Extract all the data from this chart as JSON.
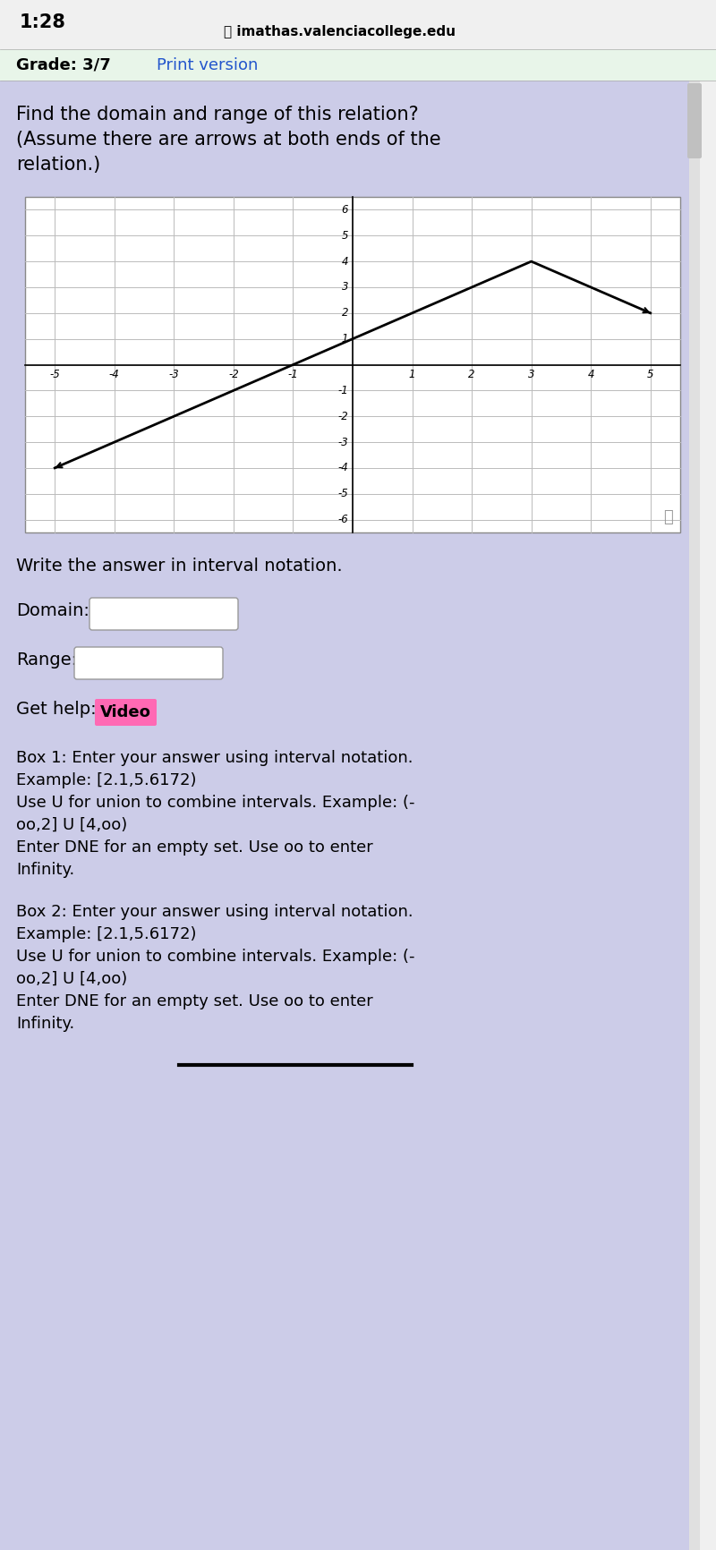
{
  "bg_color_phone": "#f0f0f0",
  "bg_color_green": "#e8f5e9",
  "bg_color_main": "#cccce8",
  "graph_bg": "#ffffff",
  "graph_line_color": "#000000",
  "graph_grid_color": "#bbbbbb",
  "graph_axis_color": "#000000",
  "graph_xlim": [
    -5.5,
    5.5
  ],
  "graph_ylim": [
    -6.5,
    6.5
  ],
  "graph_xticks": [
    -5,
    -4,
    -3,
    -2,
    -1,
    1,
    2,
    3,
    4,
    5
  ],
  "graph_yticks": [
    -6,
    -5,
    -4,
    -3,
    -2,
    -1,
    1,
    2,
    3,
    4,
    5,
    6
  ],
  "graph_tick_labels_x": [
    "-5",
    "-4",
    "-3",
    "-2",
    "-1",
    "1",
    "2",
    "3",
    "4",
    "5"
  ],
  "graph_tick_labels_y": [
    "-6",
    "-5",
    "-4",
    "-3",
    "-2",
    "-1",
    "1",
    "2",
    "3",
    "4",
    "5",
    "6"
  ],
  "line_x": [
    -5,
    -1,
    3,
    5
  ],
  "line_y": [
    -4,
    0,
    4,
    2
  ],
  "header_text": "imathas.valenciacollege.edu",
  "time_text": "1:28",
  "grade_text": "Grade: 3/7",
  "print_version_text": "Print version",
  "question_text": "Find the domain and range of this relation?\n(Assume there are arrows at both ends of the\nrelation.)",
  "write_answer_text": "Write the answer in interval notation.",
  "domain_label": "Domain:",
  "range_label": "Range:",
  "get_help_label": "Get help:",
  "video_button_text": "Video",
  "video_button_color": "#ff69b4",
  "box1_line1": "Box 1: Enter your answer using interval notation.",
  "box1_line2": "Example: [2.1,5.6172)",
  "box1_line3": "Use U for union to combine intervals. Example: (-",
  "box1_line4": "oo,2] U [4,oo)",
  "box1_line5": "Enter DNE for an empty set. Use oo to enter",
  "box1_line6": "Infinity.",
  "box2_line1": "Box 2: Enter your answer using interval notation.",
  "box2_line2": "Example: [2.1,5.6172)",
  "box2_line3": "Use U for union to combine intervals. Example: (-",
  "box2_line4": "oo,2] U [4,oo)",
  "box2_line5": "Enter DNE for an empty set. Use oo to enter",
  "box2_line6": "Infinity.",
  "scrollbar_color": "#c0c0c0",
  "input_box_color": "#ffffff",
  "input_box_border": "#999999"
}
